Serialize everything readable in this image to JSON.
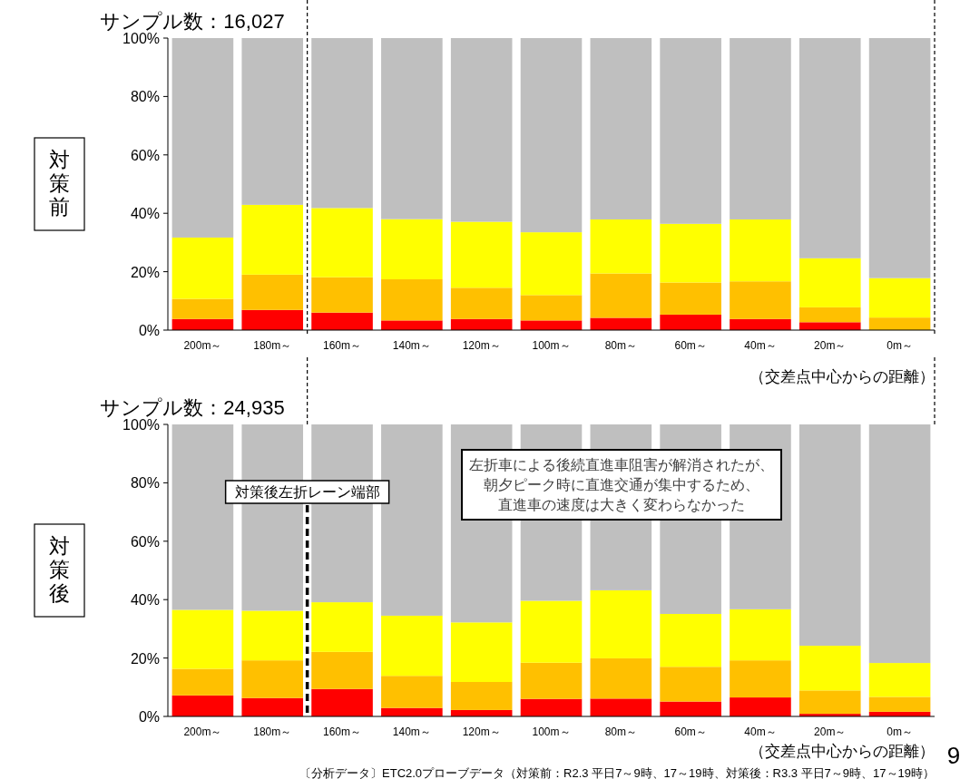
{
  "chart_data": [
    {
      "type": "bar",
      "stacked": true,
      "title": "サンプル数：16,027",
      "ylabel": "対策前",
      "xlabel": "（交差点中心からの距離）",
      "categories": [
        "200m～",
        "180m～",
        "160m～",
        "140m～",
        "120m～",
        "100m～",
        "80m～",
        "60m～",
        "40m～",
        "20m～",
        "0m～"
      ],
      "series": [
        {
          "color": "#ff0000",
          "values": [
            3.8,
            6.9,
            6.0,
            3.3,
            3.8,
            3.3,
            4.2,
            5.3,
            3.8,
            2.7,
            0
          ]
        },
        {
          "color": "#ffc000",
          "values": [
            6.9,
            12.1,
            12.1,
            14.1,
            10.7,
            8.7,
            15.2,
            11.0,
            12.9,
            5.1,
            4.3
          ]
        },
        {
          "color": "#ffff00",
          "values": [
            21.0,
            23.9,
            23.7,
            20.6,
            22.6,
            21.5,
            18.5,
            20.1,
            21.2,
            16.8,
            13.5
          ]
        },
        {
          "color": "#bfbfbf",
          "values": [
            68.3,
            57.1,
            58.2,
            62.0,
            62.9,
            66.5,
            62.1,
            63.6,
            62.1,
            75.4,
            82.2
          ]
        }
      ],
      "ylim": [
        0,
        100
      ],
      "yticks": [
        {
          "value": 0,
          "label": "0%"
        },
        {
          "value": 20,
          "label": "20%"
        },
        {
          "value": 40,
          "label": "40%"
        },
        {
          "value": 60,
          "label": "60%"
        },
        {
          "value": 80,
          "label": "80%"
        },
        {
          "value": 100,
          "label": "100%"
        }
      ],
      "grid": false
    },
    {
      "type": "bar",
      "stacked": true,
      "title": "サンプル数：24,935",
      "ylabel": "対策後",
      "xlabel": "（交差点中心からの距離）",
      "categories": [
        "200m～",
        "180m～",
        "160m～",
        "140m～",
        "120m～",
        "100m～",
        "80m～",
        "60m～",
        "40m～",
        "20m～",
        "0m～"
      ],
      "series": [
        {
          "color": "#ff0000",
          "values": [
            7.2,
            6.3,
            9.4,
            2.9,
            2.2,
            6.0,
            6.1,
            5.1,
            6.5,
            0.9,
            1.6
          ]
        },
        {
          "color": "#ffc000",
          "values": [
            9.1,
            12.9,
            12.7,
            11.0,
            9.6,
            12.4,
            13.8,
            11.9,
            12.7,
            8.0,
            5.1
          ]
        },
        {
          "color": "#ffff00",
          "values": [
            20.2,
            17.0,
            17.0,
            20.6,
            20.4,
            21.2,
            23.3,
            18.1,
            17.5,
            15.3,
            11.6
          ]
        },
        {
          "color": "#bfbfbf",
          "values": [
            63.5,
            63.8,
            60.9,
            65.5,
            67.8,
            60.4,
            56.8,
            64.9,
            63.3,
            75.8,
            81.7
          ]
        }
      ],
      "ylim": [
        0,
        100
      ],
      "yticks": [
        {
          "value": 0,
          "label": "0%"
        },
        {
          "value": 20,
          "label": "20%"
        },
        {
          "value": 40,
          "label": "40%"
        },
        {
          "value": 60,
          "label": "60%"
        },
        {
          "value": 80,
          "label": "80%"
        },
        {
          "value": 100,
          "label": "100%"
        }
      ],
      "grid": false,
      "annotations": [
        "左折車による後続直進車阻害が解消されたが、朝夕ピーク時に直進交通が集中するため、直進車の速度は大きく変わらなかった",
        "〔分析データ〕ETC2.0プローブデータ（対策前：R2.3 平日7～9時、17～19時、対策後：R3.3 平日7～9時、17～19時）",
        "9",
        "対策後左折レーン端部"
      ]
    }
  ]
}
